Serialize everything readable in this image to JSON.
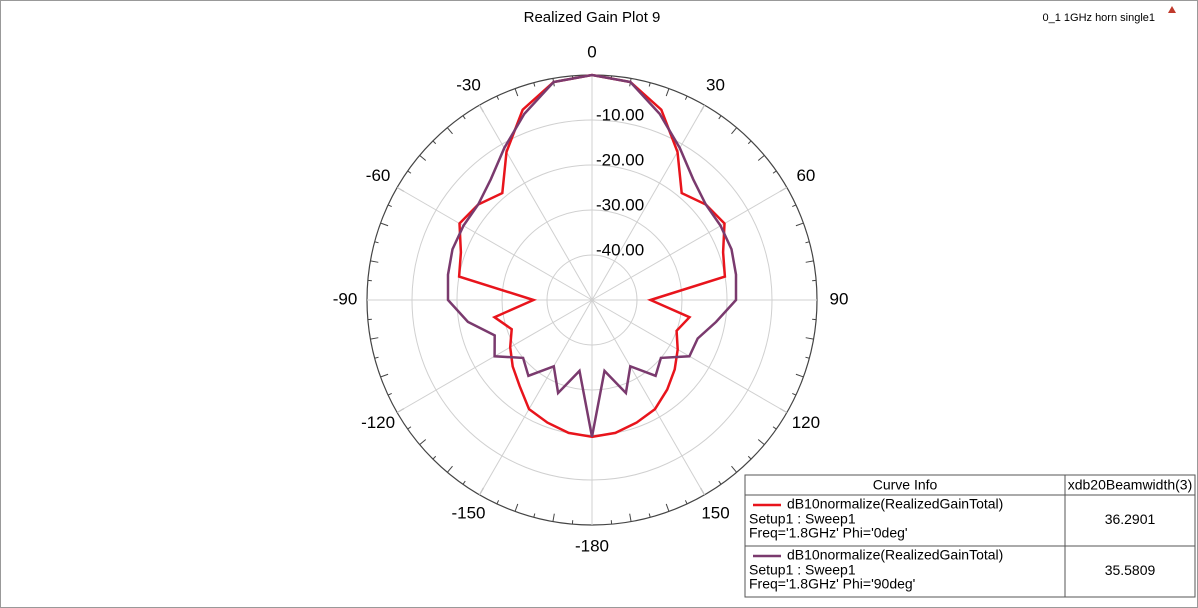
{
  "chart_data": {
    "type": "polar",
    "title": "Realized Gain Plot 9",
    "project_label": "0_1 1GHz horn single1",
    "rlim": [
      -50,
      0
    ],
    "rticks": [
      {
        "value": -10,
        "label": "-10.00"
      },
      {
        "value": -20,
        "label": "-20.00"
      },
      {
        "value": -30,
        "label": "-30.00"
      },
      {
        "value": -40,
        "label": "-40.00"
      }
    ],
    "thetaticks": [
      0,
      30,
      60,
      90,
      120,
      150,
      -180,
      -150,
      -120,
      -90,
      -60,
      -30
    ],
    "legend_headers": [
      "Curve Info",
      "xdb20Beamwidth(3)"
    ],
    "series": [
      {
        "name": "dB10normalize(RealizedGainTotal)",
        "setup": "Setup1 : Sweep1",
        "freq": "Freq='1.8GHz' Phi='0deg'",
        "color": "#e8141c",
        "beamwidth": 36.2901,
        "theta": [
          -180,
          -170,
          -160,
          -150,
          -140,
          -130,
          -120,
          -110,
          -100,
          -90,
          -80,
          -70,
          -60,
          -50,
          -40,
          -30,
          -20,
          -10,
          0,
          10,
          20,
          30,
          40,
          50,
          60,
          70,
          80,
          90,
          100,
          110,
          120,
          130,
          140,
          150,
          160,
          170
        ],
        "values": [
          -19.6,
          -20,
          -21,
          -22,
          -25,
          -27,
          -29,
          -31,
          -28,
          -37,
          -20,
          -19,
          -16,
          -17,
          -19,
          -12,
          -5,
          -0.8,
          0,
          -0.8,
          -5,
          -12,
          -19,
          -17,
          -16,
          -19,
          -20,
          -37,
          -28,
          -30,
          -28,
          -26,
          -24,
          -22,
          -21,
          -20
        ]
      },
      {
        "name": "dB10normalize(RealizedGainTotal)",
        "setup": "Setup1 : Sweep1",
        "freq": "Freq='1.8GHz' Phi='90deg'",
        "color": "#7a3a6e",
        "beamwidth": 35.5809,
        "theta": [
          -180,
          -170,
          -160,
          -150,
          -140,
          -130,
          -120,
          -110,
          -100,
          -90,
          -80,
          -70,
          -60,
          -50,
          -40,
          -30,
          -20,
          -10,
          0,
          10,
          20,
          30,
          40,
          50,
          60,
          70,
          80,
          90,
          100,
          110,
          120,
          130,
          140,
          150,
          160,
          170
        ],
        "values": [
          -19.6,
          -34,
          -28,
          -33,
          -28,
          -30,
          -25,
          -27,
          -22,
          -18,
          -17.5,
          -17,
          -17,
          -17,
          -15,
          -11,
          -6,
          -0.8,
          0,
          -0.8,
          -6,
          -11,
          -15,
          -17,
          -17,
          -17,
          -17.5,
          -18,
          -22,
          -25,
          -25,
          -30,
          -28,
          -33,
          -28,
          -34
        ]
      }
    ]
  }
}
